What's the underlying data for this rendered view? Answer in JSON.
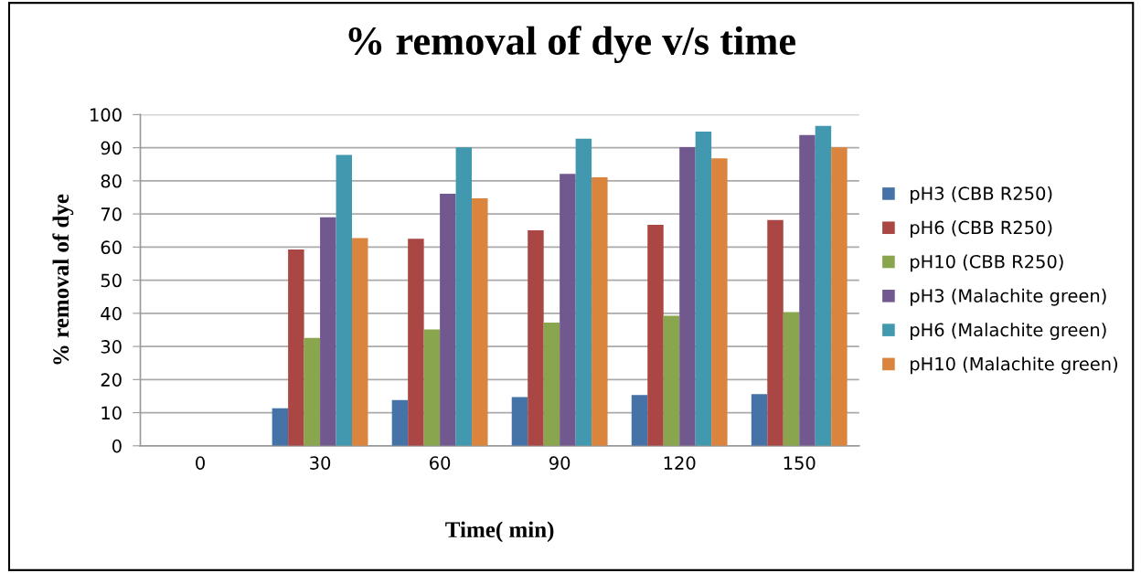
{
  "chart_data": {
    "type": "bar",
    "title": "% removal of dye v/s time",
    "xlabel": "Time( min)",
    "ylabel": "% removal of dye",
    "categories": [
      "0",
      "30",
      "60",
      "90",
      "120",
      "150"
    ],
    "series": [
      {
        "name": "pH3 (CBB R250)",
        "color": "#4572a7",
        "values": [
          0,
          11.3,
          13.8,
          14.7,
          15.3,
          15.6
        ]
      },
      {
        "name": "pH6 (CBB R250)",
        "color": "#aa4643",
        "values": [
          0,
          59.3,
          62.5,
          65.1,
          66.7,
          68.2
        ]
      },
      {
        "name": "pH10 (CBB R250)",
        "color": "#89a54e",
        "values": [
          0,
          32.6,
          35.1,
          37.2,
          39.3,
          40.4
        ]
      },
      {
        "name": "pH3 (Malachite green)",
        "color": "#71588f",
        "values": [
          0,
          69.0,
          76.1,
          82.1,
          90.2,
          93.8
        ]
      },
      {
        "name": "pH6 (Malachite green)",
        "color": "#4198af",
        "values": [
          0,
          87.8,
          90.1,
          92.7,
          94.9,
          96.6
        ]
      },
      {
        "name": "pH10 (Malachite green)",
        "color": "#db843d",
        "values": [
          0,
          62.7,
          74.7,
          81.1,
          86.8,
          90.1
        ]
      }
    ],
    "ylim": [
      0,
      100
    ],
    "yticks": [
      0,
      10,
      20,
      30,
      40,
      50,
      60,
      70,
      80,
      90,
      100
    ],
    "grid": "y",
    "legend": "right"
  }
}
